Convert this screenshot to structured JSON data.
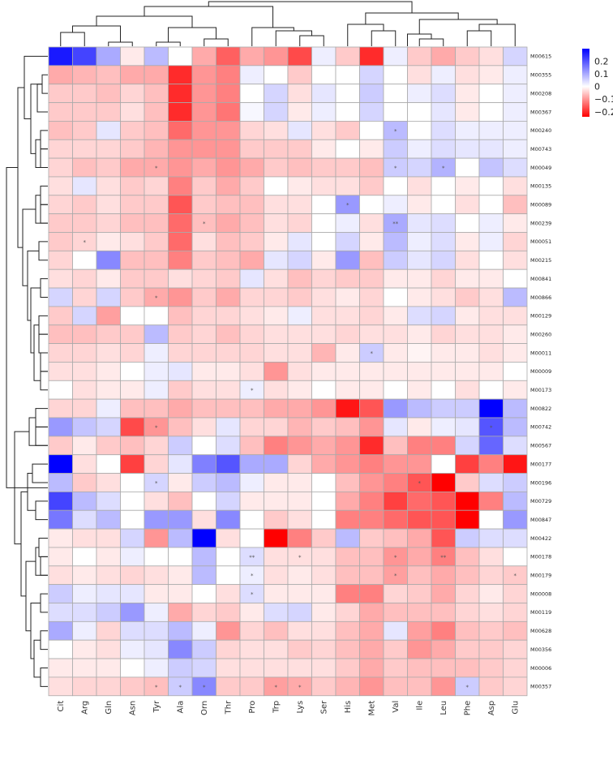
{
  "chart_data": {
    "type": "heatmap",
    "title": "",
    "xlabel": "",
    "ylabel": "",
    "columns": [
      "Cit",
      "Arg",
      "Gln",
      "Asn",
      "Tyr",
      "Ala",
      "Orn",
      "Thr",
      "Pro",
      "Trp",
      "Lys",
      "Ser",
      "His",
      "Met",
      "Val",
      "Ile",
      "Leu",
      "Phe",
      "Asp",
      "Glu"
    ],
    "rows": [
      "M00615",
      "M00355",
      "M00208",
      "M00367",
      "M00240",
      "M00743",
      "M00049",
      "M00135",
      "M00089",
      "M00239",
      "M00051",
      "M00215",
      "M00841",
      "M00866",
      "M00129",
      "M00260",
      "M00011",
      "M00009",
      "M00173",
      "M00822",
      "M00742",
      "M00567",
      "M00177",
      "M00196",
      "M00729",
      "M00847",
      "M00422",
      "M00178",
      "M00179",
      "M00008",
      "M00119",
      "M00628",
      "M00356",
      "M00006",
      "M00357"
    ],
    "values": [
      [
        0.27,
        0.22,
        0.1,
        -0.02,
        0.08,
        0.0,
        -0.08,
        -0.15,
        -0.08,
        -0.1,
        -0.17,
        0.02,
        -0.05,
        -0.2,
        0.02,
        -0.05,
        -0.08,
        -0.05,
        -0.03,
        0.05
      ],
      [
        -0.08,
        -0.07,
        -0.06,
        -0.08,
        -0.08,
        -0.2,
        -0.1,
        -0.12,
        0.02,
        0.0,
        -0.05,
        0.0,
        0.0,
        0.05,
        0.0,
        -0.03,
        0.02,
        -0.03,
        -0.02,
        0.02
      ],
      [
        -0.05,
        -0.05,
        -0.06,
        -0.04,
        -0.06,
        -0.2,
        -0.1,
        -0.12,
        0.0,
        0.05,
        -0.03,
        0.03,
        0.0,
        0.06,
        0.0,
        0.02,
        0.04,
        -0.02,
        0.0,
        0.02
      ],
      [
        -0.05,
        -0.05,
        -0.05,
        -0.03,
        -0.06,
        -0.2,
        -0.1,
        -0.13,
        0.01,
        0.05,
        -0.02,
        0.02,
        0.0,
        0.05,
        0.0,
        0.0,
        0.03,
        -0.02,
        0.0,
        0.02
      ],
      [
        -0.06,
        -0.05,
        0.03,
        -0.05,
        -0.06,
        -0.14,
        -0.1,
        -0.1,
        -0.04,
        -0.03,
        0.03,
        -0.03,
        -0.05,
        0.0,
        0.08,
        0.0,
        0.04,
        0.02,
        0.02,
        0.02
      ],
      [
        -0.04,
        -0.04,
        -0.04,
        -0.05,
        -0.07,
        -0.1,
        -0.1,
        -0.1,
        -0.05,
        -0.05,
        -0.05,
        -0.02,
        0.0,
        -0.02,
        0.06,
        0.02,
        0.04,
        0.03,
        0.03,
        0.02
      ],
      [
        -0.04,
        -0.06,
        -0.05,
        -0.08,
        -0.08,
        -0.1,
        -0.08,
        -0.1,
        -0.08,
        -0.05,
        -0.06,
        -0.05,
        -0.05,
        -0.06,
        0.06,
        0.05,
        0.09,
        0.0,
        0.07,
        0.04
      ],
      [
        -0.03,
        0.03,
        -0.03,
        -0.05,
        -0.04,
        -0.12,
        -0.05,
        -0.08,
        -0.05,
        0.0,
        -0.02,
        -0.03,
        -0.03,
        -0.05,
        0.0,
        -0.03,
        0.0,
        -0.02,
        0.0,
        -0.03
      ],
      [
        -0.04,
        -0.05,
        -0.03,
        -0.05,
        -0.05,
        -0.16,
        -0.05,
        -0.06,
        -0.06,
        -0.03,
        -0.03,
        0.0,
        0.12,
        0.0,
        0.02,
        -0.02,
        0.0,
        -0.03,
        0.0,
        -0.06
      ],
      [
        -0.05,
        -0.05,
        -0.04,
        -0.06,
        -0.06,
        -0.14,
        -0.06,
        -0.08,
        -0.06,
        -0.03,
        -0.04,
        0.0,
        0.02,
        -0.03,
        0.1,
        0.03,
        0.04,
        0.0,
        0.02,
        -0.02
      ],
      [
        -0.05,
        -0.04,
        -0.02,
        -0.03,
        -0.05,
        -0.14,
        -0.03,
        -0.06,
        -0.05,
        -0.02,
        0.03,
        0.0,
        0.05,
        -0.02,
        0.08,
        0.02,
        0.04,
        -0.02,
        0.02,
        -0.04
      ],
      [
        -0.04,
        0.0,
        0.14,
        -0.06,
        -0.06,
        -0.12,
        -0.05,
        -0.06,
        -0.08,
        0.03,
        0.05,
        -0.02,
        0.12,
        -0.06,
        0.06,
        0.03,
        0.05,
        -0.03,
        0.0,
        -0.03
      ],
      [
        -0.03,
        -0.04,
        -0.02,
        -0.05,
        -0.05,
        -0.03,
        -0.04,
        -0.05,
        0.03,
        -0.03,
        -0.06,
        -0.04,
        -0.05,
        -0.05,
        -0.02,
        -0.02,
        -0.04,
        -0.02,
        -0.02,
        0.0
      ],
      [
        0.05,
        -0.04,
        0.05,
        -0.05,
        -0.08,
        -0.1,
        -0.05,
        -0.08,
        -0.04,
        -0.04,
        -0.05,
        -0.03,
        -0.02,
        -0.04,
        0.0,
        -0.02,
        -0.03,
        -0.05,
        -0.03,
        0.08
      ],
      [
        -0.05,
        0.05,
        -0.09,
        0.0,
        0.0,
        -0.06,
        -0.04,
        -0.04,
        -0.03,
        -0.02,
        0.02,
        -0.03,
        -0.03,
        -0.04,
        -0.02,
        0.04,
        0.05,
        -0.02,
        -0.03,
        -0.03
      ],
      [
        -0.06,
        -0.06,
        -0.05,
        -0.05,
        0.08,
        -0.05,
        -0.04,
        -0.06,
        -0.04,
        -0.03,
        -0.03,
        -0.03,
        -0.04,
        -0.03,
        -0.03,
        -0.02,
        -0.04,
        -0.03,
        -0.03,
        -0.02
      ],
      [
        -0.04,
        -0.04,
        -0.03,
        -0.04,
        0.02,
        -0.04,
        -0.04,
        -0.04,
        -0.04,
        -0.03,
        -0.03,
        -0.07,
        -0.02,
        0.06,
        -0.02,
        -0.01,
        -0.02,
        -0.02,
        -0.03,
        -0.02
      ],
      [
        -0.03,
        -0.03,
        -0.02,
        0.0,
        0.02,
        0.03,
        -0.02,
        -0.02,
        -0.03,
        -0.1,
        -0.03,
        -0.02,
        -0.02,
        -0.02,
        -0.02,
        -0.02,
        -0.02,
        -0.02,
        -0.02,
        0.0
      ],
      [
        0.0,
        -0.03,
        -0.02,
        -0.02,
        0.02,
        -0.05,
        -0.03,
        -0.03,
        0.02,
        -0.03,
        -0.02,
        0.0,
        -0.02,
        -0.02,
        0.0,
        -0.02,
        0.0,
        -0.03,
        0.0,
        -0.02
      ],
      [
        -0.04,
        -0.04,
        0.02,
        -0.06,
        -0.06,
        -0.08,
        -0.06,
        -0.06,
        -0.06,
        -0.08,
        -0.08,
        -0.1,
        -0.22,
        -0.16,
        0.12,
        0.08,
        0.06,
        0.06,
        0.3,
        0.08
      ],
      [
        0.12,
        0.07,
        0.05,
        -0.17,
        -0.1,
        -0.06,
        -0.03,
        0.03,
        -0.04,
        -0.04,
        -0.07,
        -0.05,
        -0.06,
        -0.1,
        0.03,
        -0.02,
        0.02,
        0.03,
        0.2,
        0.08
      ],
      [
        -0.05,
        -0.02,
        -0.05,
        -0.06,
        -0.04,
        0.06,
        0.0,
        0.04,
        -0.06,
        -0.12,
        -0.1,
        -0.08,
        -0.1,
        -0.2,
        -0.06,
        -0.12,
        -0.12,
        0.05,
        0.18,
        0.04
      ],
      [
        0.3,
        -0.03,
        0.0,
        -0.18,
        -0.04,
        0.03,
        0.15,
        0.2,
        0.1,
        0.1,
        -0.04,
        -0.08,
        -0.1,
        -0.12,
        -0.1,
        -0.1,
        0.0,
        -0.18,
        -0.12,
        -0.22
      ],
      [
        0.08,
        -0.05,
        -0.03,
        0.0,
        0.05,
        -0.02,
        0.06,
        0.08,
        0.02,
        -0.02,
        -0.02,
        0.0,
        -0.06,
        -0.1,
        -0.12,
        -0.16,
        -0.24,
        -0.05,
        0.04,
        0.06
      ],
      [
        0.22,
        0.08,
        0.04,
        0.0,
        -0.03,
        -0.06,
        0.0,
        0.05,
        -0.02,
        -0.02,
        -0.02,
        0.0,
        -0.08,
        -0.12,
        -0.18,
        -0.14,
        -0.16,
        -0.24,
        -0.12,
        0.08
      ],
      [
        0.16,
        0.04,
        0.08,
        0.0,
        0.12,
        0.12,
        -0.03,
        0.14,
        0.0,
        -0.05,
        -0.03,
        0.0,
        -0.12,
        -0.12,
        -0.14,
        -0.16,
        -0.16,
        -0.24,
        0.0,
        0.12
      ],
      [
        -0.02,
        -0.03,
        -0.03,
        0.05,
        -0.1,
        0.08,
        0.3,
        -0.03,
        0.0,
        -0.24,
        -0.12,
        -0.05,
        0.08,
        -0.05,
        -0.06,
        -0.08,
        -0.16,
        0.06,
        0.04,
        0.04
      ],
      [
        -0.02,
        0.0,
        -0.02,
        0.02,
        0.0,
        0.0,
        0.08,
        0.0,
        0.04,
        -0.03,
        -0.03,
        -0.03,
        -0.06,
        -0.06,
        -0.1,
        -0.08,
        -0.12,
        -0.06,
        -0.03,
        0.0
      ],
      [
        -0.03,
        -0.02,
        -0.03,
        -0.04,
        -0.03,
        -0.02,
        0.08,
        0.0,
        0.02,
        -0.03,
        -0.02,
        -0.03,
        -0.06,
        -0.06,
        -0.09,
        -0.06,
        -0.08,
        -0.06,
        -0.04,
        -0.05
      ],
      [
        0.06,
        0.02,
        0.03,
        0.03,
        -0.02,
        -0.02,
        0.0,
        -0.03,
        0.04,
        -0.02,
        -0.02,
        -0.02,
        -0.12,
        -0.12,
        -0.04,
        -0.05,
        -0.08,
        -0.04,
        -0.02,
        -0.04
      ],
      [
        0.04,
        0.04,
        0.06,
        0.12,
        0.02,
        -0.08,
        -0.04,
        -0.05,
        -0.02,
        0.04,
        0.05,
        -0.02,
        -0.04,
        -0.08,
        -0.06,
        -0.06,
        -0.06,
        -0.04,
        -0.03,
        -0.04
      ],
      [
        0.1,
        0.02,
        -0.04,
        0.04,
        0.04,
        0.08,
        0.02,
        -0.1,
        -0.04,
        -0.06,
        -0.03,
        -0.03,
        -0.06,
        -0.08,
        0.03,
        -0.09,
        -0.12,
        -0.06,
        -0.05,
        -0.06
      ],
      [
        0.0,
        -0.02,
        -0.03,
        0.02,
        0.03,
        0.14,
        0.06,
        -0.04,
        -0.03,
        -0.03,
        -0.05,
        -0.04,
        -0.06,
        -0.08,
        -0.05,
        -0.1,
        -0.08,
        -0.05,
        -0.05,
        -0.04
      ],
      [
        -0.02,
        -0.02,
        -0.02,
        0.0,
        0.02,
        0.06,
        0.05,
        -0.03,
        -0.03,
        -0.03,
        -0.03,
        -0.03,
        -0.05,
        -0.08,
        -0.05,
        -0.06,
        -0.06,
        -0.06,
        -0.05,
        -0.04
      ],
      [
        -0.03,
        -0.04,
        -0.04,
        -0.05,
        -0.06,
        0.06,
        0.14,
        -0.05,
        -0.05,
        -0.09,
        -0.08,
        -0.05,
        -0.07,
        -0.1,
        -0.06,
        -0.06,
        -0.1,
        0.06,
        -0.05,
        -0.04
      ]
    ],
    "significance": [
      {
        "row": "M00240",
        "col": "Val",
        "label": "*"
      },
      {
        "row": "M00049",
        "col": "Tyr",
        "label": "*"
      },
      {
        "row": "M00049",
        "col": "Val",
        "label": "*"
      },
      {
        "row": "M00049",
        "col": "Leu",
        "label": "*"
      },
      {
        "row": "M00089",
        "col": "His",
        "label": "*"
      },
      {
        "row": "M00239",
        "col": "Orn",
        "label": "*"
      },
      {
        "row": "M00239",
        "col": "Val",
        "label": "**"
      },
      {
        "row": "M00051",
        "col": "Arg",
        "label": "*"
      },
      {
        "row": "M00866",
        "col": "Tyr",
        "label": "*"
      },
      {
        "row": "M00011",
        "col": "Met",
        "label": "*"
      },
      {
        "row": "M00173",
        "col": "Pro",
        "label": "*"
      },
      {
        "row": "M00742",
        "col": "Tyr",
        "label": "*"
      },
      {
        "row": "M00742",
        "col": "Asp",
        "label": "*"
      },
      {
        "row": "M00196",
        "col": "Tyr",
        "label": "*"
      },
      {
        "row": "M00196",
        "col": "Ile",
        "label": "*"
      },
      {
        "row": "M00178",
        "col": "Pro",
        "label": "**"
      },
      {
        "row": "M00178",
        "col": "Lys",
        "label": "*"
      },
      {
        "row": "M00178",
        "col": "Val",
        "label": "*"
      },
      {
        "row": "M00178",
        "col": "Leu",
        "label": "**"
      },
      {
        "row": "M00179",
        "col": "Pro",
        "label": "*"
      },
      {
        "row": "M00179",
        "col": "Val",
        "label": "*"
      },
      {
        "row": "M00179",
        "col": "Glu",
        "label": "*"
      },
      {
        "row": "M00008",
        "col": "Pro",
        "label": "*"
      },
      {
        "row": "M00357",
        "col": "Tyr",
        "label": "*"
      },
      {
        "row": "M00357",
        "col": "Ala",
        "label": "*"
      },
      {
        "row": "M00357",
        "col": "Orn",
        "label": "*"
      },
      {
        "row": "M00357",
        "col": "Trp",
        "label": "*"
      },
      {
        "row": "M00357",
        "col": "Lys",
        "label": "*"
      },
      {
        "row": "M00357",
        "col": "Phe",
        "label": "*"
      }
    ],
    "legend": {
      "position": "top-right",
      "ticks": [
        0.2,
        0.1,
        0,
        -0.1,
        -0.2
      ],
      "tick_labels": [
        "0.2",
        "0.1",
        "0",
        "−0.1",
        "−0.2"
      ],
      "range": [
        -0.24,
        0.3
      ],
      "colors": {
        "low": "#ff0000",
        "mid": "#ffffff",
        "high": "#0000ff"
      }
    },
    "dendrograms": {
      "rows": true,
      "columns": true
    },
    "grid": true,
    "cell_border_color": "#aaaaaa"
  }
}
